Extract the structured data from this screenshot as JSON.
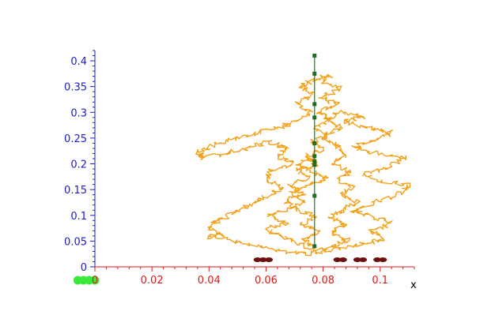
{
  "chart_data": {
    "type": "line",
    "title": "",
    "xlabel": "x",
    "ylabel": "",
    "xlim": [
      0,
      0.112
    ],
    "ylim": [
      0,
      0.42
    ],
    "grid": false,
    "x_ticks": [
      {
        "value": 0,
        "label": "0"
      },
      {
        "value": 0.02,
        "label": "0.02"
      },
      {
        "value": 0.04,
        "label": "0.04"
      },
      {
        "value": 0.06,
        "label": "0.06"
      },
      {
        "value": 0.08,
        "label": "0.08"
      },
      {
        "value": 0.1,
        "label": "0.1"
      }
    ],
    "y_ticks": [
      {
        "value": 0,
        "label": "0"
      },
      {
        "value": 0.05,
        "label": "0.05"
      },
      {
        "value": 0.1,
        "label": "0.1"
      },
      {
        "value": 0.15,
        "label": "0.15"
      },
      {
        "value": 0.2,
        "label": "0.2"
      },
      {
        "value": 0.25,
        "label": "0.25"
      },
      {
        "value": 0.3,
        "label": "0.3"
      },
      {
        "value": 0.35,
        "label": "0.35"
      },
      {
        "value": 0.4,
        "label": "0.4"
      }
    ],
    "series": [
      {
        "kind": "path",
        "color": "#f4a11a",
        "points": [
          [
            0.077,
            0.04
          ],
          [
            0.073,
            0.052
          ],
          [
            0.079,
            0.068
          ],
          [
            0.072,
            0.083
          ],
          [
            0.078,
            0.098
          ],
          [
            0.07,
            0.112
          ],
          [
            0.067,
            0.128
          ],
          [
            0.073,
            0.142
          ],
          [
            0.068,
            0.158
          ],
          [
            0.075,
            0.172
          ],
          [
            0.071,
            0.188
          ],
          [
            0.078,
            0.2
          ],
          [
            0.074,
            0.215
          ],
          [
            0.08,
            0.228
          ],
          [
            0.076,
            0.242
          ],
          [
            0.082,
            0.256
          ],
          [
            0.077,
            0.27
          ],
          [
            0.083,
            0.285
          ],
          [
            0.078,
            0.3
          ],
          [
            0.085,
            0.315
          ],
          [
            0.079,
            0.33
          ],
          [
            0.086,
            0.345
          ],
          [
            0.08,
            0.36
          ],
          [
            0.083,
            0.372
          ],
          [
            0.077,
            0.365
          ],
          [
            0.072,
            0.35
          ],
          [
            0.077,
            0.335
          ],
          [
            0.071,
            0.318
          ],
          [
            0.076,
            0.3
          ],
          [
            0.07,
            0.282
          ],
          [
            0.065,
            0.27
          ],
          [
            0.058,
            0.262
          ],
          [
            0.05,
            0.25
          ],
          [
            0.042,
            0.238
          ],
          [
            0.036,
            0.222
          ],
          [
            0.038,
            0.212
          ],
          [
            0.046,
            0.22
          ],
          [
            0.054,
            0.232
          ],
          [
            0.061,
            0.242
          ],
          [
            0.067,
            0.232
          ],
          [
            0.064,
            0.214
          ],
          [
            0.07,
            0.2
          ],
          [
            0.062,
            0.188
          ],
          [
            0.06,
            0.168
          ],
          [
            0.066,
            0.152
          ],
          [
            0.06,
            0.138
          ],
          [
            0.055,
            0.12
          ],
          [
            0.049,
            0.105
          ],
          [
            0.043,
            0.09
          ],
          [
            0.04,
            0.075
          ],
          [
            0.045,
            0.062
          ],
          [
            0.04,
            0.058
          ],
          [
            0.05,
            0.05
          ],
          [
            0.058,
            0.038
          ],
          [
            0.066,
            0.03
          ],
          [
            0.073,
            0.025
          ],
          [
            0.08,
            0.03
          ],
          [
            0.088,
            0.035
          ],
          [
            0.095,
            0.045
          ],
          [
            0.101,
            0.055
          ],
          [
            0.097,
            0.07
          ],
          [
            0.104,
            0.085
          ],
          [
            0.096,
            0.098
          ],
          [
            0.09,
            0.11
          ],
          [
            0.098,
            0.125
          ],
          [
            0.106,
            0.14
          ],
          [
            0.111,
            0.158
          ],
          [
            0.101,
            0.165
          ],
          [
            0.094,
            0.178
          ],
          [
            0.102,
            0.192
          ],
          [
            0.11,
            0.212
          ],
          [
            0.099,
            0.22
          ],
          [
            0.091,
            0.232
          ],
          [
            0.098,
            0.245
          ],
          [
            0.104,
            0.26
          ],
          [
            0.095,
            0.27
          ],
          [
            0.087,
            0.282
          ],
          [
            0.094,
            0.292
          ],
          [
            0.086,
            0.3
          ],
          [
            0.081,
            0.288
          ],
          [
            0.086,
            0.27
          ],
          [
            0.08,
            0.252
          ],
          [
            0.085,
            0.235
          ],
          [
            0.088,
            0.218
          ],
          [
            0.083,
            0.2
          ],
          [
            0.09,
            0.186
          ],
          [
            0.085,
            0.17
          ],
          [
            0.091,
            0.155
          ],
          [
            0.086,
            0.14
          ],
          [
            0.092,
            0.125
          ],
          [
            0.087,
            0.11
          ],
          [
            0.082,
            0.096
          ],
          [
            0.088,
            0.082
          ],
          [
            0.083,
            0.066
          ],
          [
            0.089,
            0.052
          ],
          [
            0.084,
            0.04
          ],
          [
            0.078,
            0.034
          ],
          [
            0.072,
            0.044
          ],
          [
            0.066,
            0.058
          ],
          [
            0.06,
            0.072
          ],
          [
            0.067,
            0.086
          ],
          [
            0.061,
            0.1
          ],
          [
            0.068,
            0.114
          ],
          [
            0.074,
            0.128
          ],
          [
            0.069,
            0.143
          ],
          [
            0.075,
            0.158
          ],
          [
            0.081,
            0.172
          ],
          [
            0.076,
            0.186
          ],
          [
            0.071,
            0.2
          ],
          [
            0.077,
            0.214
          ]
        ]
      },
      {
        "kind": "line",
        "color": "#1f7a1f",
        "marker_color": "#1f6f1f",
        "points": [
          [
            0.077,
            0.04
          ],
          [
            0.077,
            0.138
          ],
          [
            0.077,
            0.198
          ],
          [
            0.077,
            0.205
          ],
          [
            0.077,
            0.215
          ],
          [
            0.077,
            0.24
          ],
          [
            0.077,
            0.29
          ],
          [
            0.077,
            0.316
          ],
          [
            0.077,
            0.375
          ],
          [
            0.077,
            0.41
          ]
        ]
      }
    ],
    "bottom_markers": {
      "color": "#6b1010",
      "points": [
        [
          0.057,
          0.015
        ],
        [
          0.059,
          0.015
        ],
        [
          0.061,
          0.015
        ],
        [
          0.085,
          0.015
        ],
        [
          0.087,
          0.015
        ],
        [
          0.092,
          0.015
        ],
        [
          0.094,
          0.015
        ],
        [
          0.099,
          0.015
        ],
        [
          0.101,
          0.015
        ]
      ]
    },
    "axis_markers": {
      "color": "#3ce83c",
      "points": [
        [
          -0.006,
          -0.028
        ],
        [
          -0.004,
          -0.028
        ],
        [
          -0.002,
          -0.028
        ],
        [
          0.0,
          -0.028
        ]
      ]
    }
  }
}
